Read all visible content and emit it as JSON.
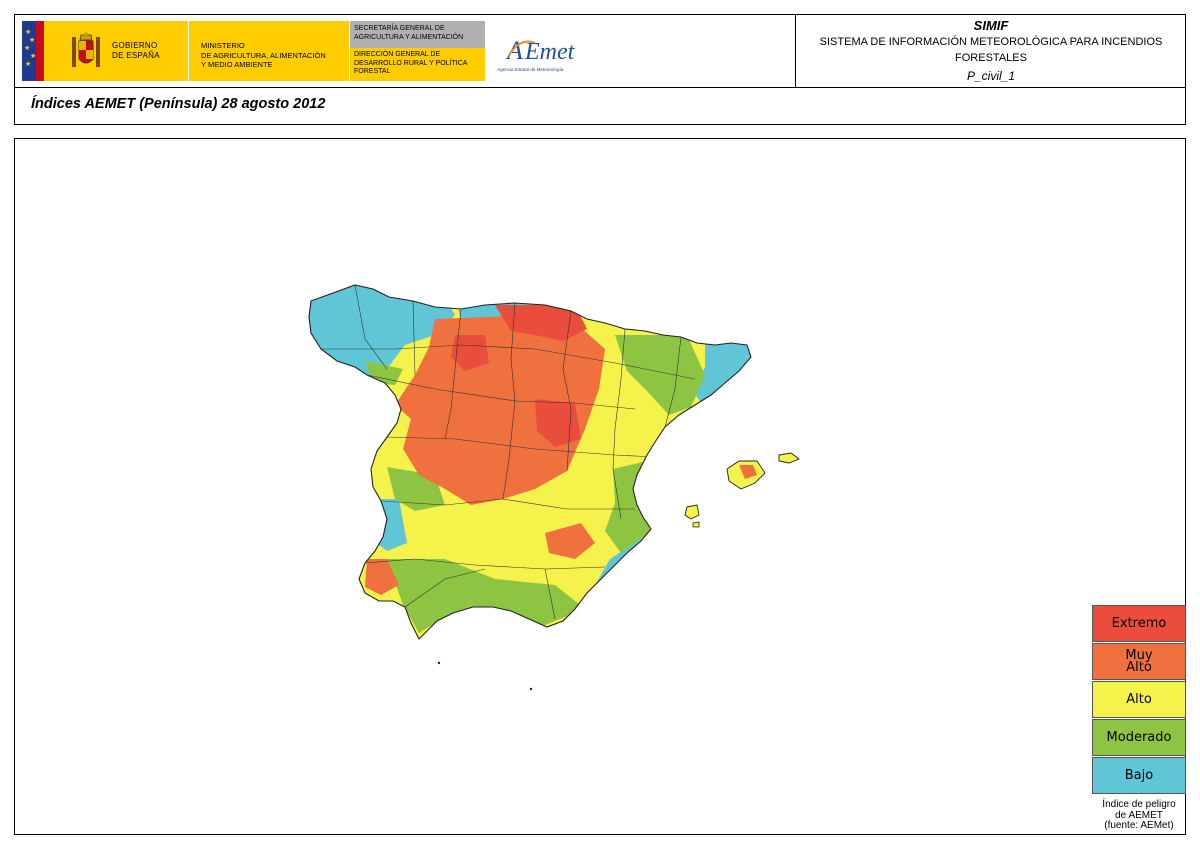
{
  "header": {
    "gov_logo": {
      "icon": "coat-of-arms-icon",
      "line1": "GOBIERNO",
      "line2": "DE ESPAÑA"
    },
    "ministry": "MINISTERIO\nDE AGRICULTURA, ALIMENTACIÓN\nY MEDIO AMBIENTE",
    "secretaria": "SECRETARÍA GENERAL DE\nAGRICULTURA Y ALIMENTACIÓN",
    "direccion": "DIRECCIÓN GENERAL DE\nDESARROLLO RURAL Y POLÍTICA\nFORESTAL",
    "aemet_logo": {
      "name": "AEMet",
      "tagline": "Agencia Estatal de Meteorología"
    },
    "system_title": "SIMIF",
    "system_subtitle": "SISTEMA DE INFORMACIÓN METEOROLÓGICA PARA INCENDIOS FORESTALES",
    "map_code": "P_civil_1"
  },
  "map": {
    "title": "Índices AEMET (Península) 28 agosto 2012",
    "region": "Península Ibérica (España) e Islas Baleares",
    "legend": [
      {
        "label": "Extremo",
        "color": "#ea4d3c"
      },
      {
        "label": "Muy\nAlto",
        "color": "#f07140"
      },
      {
        "label": "Alto",
        "color": "#f5f24b"
      },
      {
        "label": "Moderado",
        "color": "#8dc543"
      },
      {
        "label": "Bajo",
        "color": "#60c6d7"
      }
    ],
    "legend_note": "Índice de peligro\nde AEMET\n(fuente: AEMet)"
  }
}
